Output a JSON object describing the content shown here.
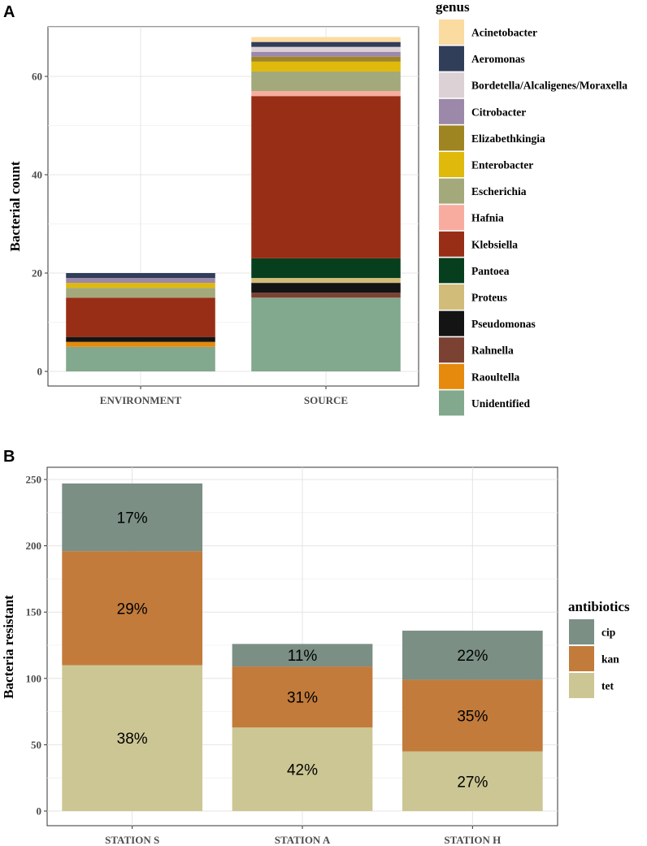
{
  "chart_data": [
    {
      "panel": "A",
      "type": "bar",
      "stacked": true,
      "title": "",
      "xlabel": "",
      "ylabel": "Bacterial count",
      "ylim": [
        0,
        67
      ],
      "yticks": [
        0,
        20,
        40,
        60
      ],
      "categories": [
        "ENVIRONMENT",
        "SOURCE"
      ],
      "legend_title": "genus",
      "legend_position": "right",
      "series": [
        {
          "name": "Unidentified",
          "color": "#82a88d",
          "values": [
            5,
            15
          ]
        },
        {
          "name": "Raoultella",
          "color": "#e58a0d",
          "values": [
            1,
            0
          ]
        },
        {
          "name": "Rahnella",
          "color": "#7b4233",
          "values": [
            0,
            1
          ]
        },
        {
          "name": "Pseudomonas",
          "color": "#141414",
          "values": [
            1,
            2
          ]
        },
        {
          "name": "Proteus",
          "color": "#d2bc7a",
          "values": [
            0,
            1
          ]
        },
        {
          "name": "Pantoea",
          "color": "#073f1e",
          "values": [
            0,
            4
          ]
        },
        {
          "name": "Klebsiella",
          "color": "#982e16",
          "values": [
            8,
            33
          ]
        },
        {
          "name": "Hafnia",
          "color": "#f8aca0",
          "values": [
            0,
            1
          ]
        },
        {
          "name": "Escherichia",
          "color": "#a4a97b",
          "values": [
            2,
            4
          ]
        },
        {
          "name": "Enterobacter",
          "color": "#dfb90b",
          "values": [
            1,
            2
          ]
        },
        {
          "name": "Elizabethkingia",
          "color": "#9f8522",
          "values": [
            0,
            1
          ]
        },
        {
          "name": "Citrobacter",
          "color": "#9c88a8",
          "values": [
            1,
            1
          ]
        },
        {
          "name": "Bordetella/Alcaligenes/Moraxella",
          "color": "#dcd2d5",
          "values": [
            0,
            1
          ]
        },
        {
          "name": "Aeromonas",
          "color": "#313e5a",
          "values": [
            1,
            1
          ]
        },
        {
          "name": "Acinetobacter",
          "color": "#fadba0",
          "values": [
            0,
            1
          ]
        }
      ]
    },
    {
      "panel": "B",
      "type": "bar",
      "stacked": true,
      "title": "",
      "xlabel": "",
      "ylabel": "Bacteria resistant",
      "ylim": [
        0,
        250
      ],
      "yticks": [
        0,
        50,
        100,
        150,
        200,
        250
      ],
      "categories": [
        "STATION S",
        "STATION A",
        "STATION H"
      ],
      "legend_title": "antibiotics",
      "legend_position": "right",
      "series": [
        {
          "name": "tet",
          "color": "#ccc694",
          "values": [
            110,
            63,
            45
          ],
          "labels": [
            "38%",
            "42%",
            "27%"
          ]
        },
        {
          "name": "kan",
          "color": "#c27b3b",
          "values": [
            86,
            46,
            54
          ],
          "labels": [
            "29%",
            "31%",
            "35%"
          ]
        },
        {
          "name": "cip",
          "color": "#7b8f85",
          "values": [
            51,
            17,
            37
          ],
          "labels": [
            "17%",
            "11%",
            "22%"
          ]
        }
      ]
    }
  ]
}
